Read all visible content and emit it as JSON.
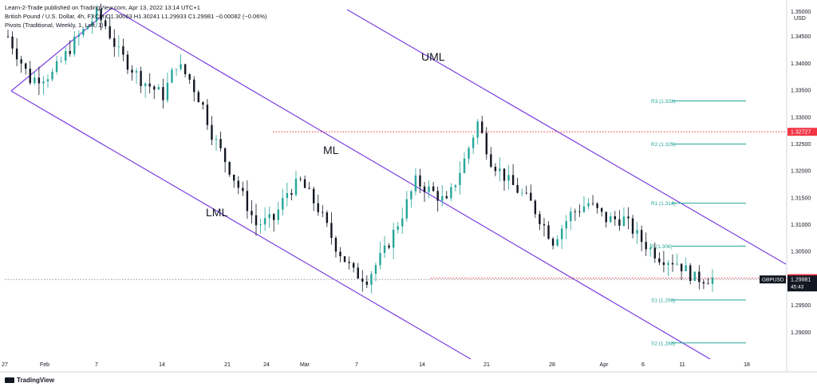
{
  "header": {
    "publisher": "Learn-2-Trade published on TradingView.com, Apr 13, 2022 13:14 UTC+1",
    "symbol_line": "British Pound / U.S. Dollar, 4h, FXCM  O1.30063 H1.30241 L1.29933 C1.29981 −0.00082 (−0.06%)",
    "indicator_line": "Pivots (Traditional, Weekly, 1, Left, 1)"
  },
  "footer": {
    "brand": "TradingView"
  },
  "colors": {
    "bull": "#26a69a",
    "bear": "#131722",
    "channel": "#7b3fe4",
    "pivot": "#26a69a",
    "dotted_red": "#f23645",
    "dotted_gray": "#9598a1"
  },
  "chart_data": {
    "type": "candlestick",
    "title": "British Pound / U.S. Dollar, 4h, FXCM",
    "currency": "USD",
    "ylim": [
      1.285,
      1.35
    ],
    "yticks": [
      1.29,
      1.295,
      1.3,
      1.305,
      1.31,
      1.315,
      1.32,
      1.325,
      1.33,
      1.335,
      1.34,
      1.345
    ],
    "y_tick_labels": [
      "1.29000",
      "1.29500",
      "1.30000",
      "1.30500",
      "1.31000",
      "1.31500",
      "1.32000",
      "1.32500",
      "1.33000",
      "1.33500",
      "1.34000",
      "1.34500"
    ],
    "top_tick_label": "1.35000",
    "x_tick_labels": [
      "27",
      "Feb",
      "7",
      "14",
      "21",
      "24",
      "Mar",
      "7",
      "14",
      "21",
      "28",
      "Apr",
      "6",
      "11",
      "18"
    ],
    "channel_labels": [
      "UML",
      "ML",
      "LML"
    ],
    "pivots": [
      {
        "label": "R3 (1.333)",
        "value": 1.333
      },
      {
        "label": "R2 (1.325)",
        "value": 1.325
      },
      {
        "label": "R1 (1.314)",
        "value": 1.314
      },
      {
        "label": "P (1.306)",
        "value": 1.306
      },
      {
        "label": "S1 (1.296)",
        "value": 1.296
      },
      {
        "label": "S2 (1.288)",
        "value": 1.288
      }
    ],
    "price_tags": [
      {
        "label": "1.32727",
        "value": 1.32727,
        "color": "#f23645"
      },
      {
        "label": "1.30005",
        "value": 1.30005,
        "color": "#f23645"
      }
    ],
    "last_price": {
      "symbol": "GBPUSD",
      "price": "1.29981",
      "countdown": "45:43"
    },
    "waypoints": [
      [
        0,
        1.345
      ],
      [
        5,
        1.337
      ],
      [
        10,
        1.338
      ],
      [
        15,
        1.344
      ],
      [
        20,
        1.349
      ],
      [
        22,
        1.347
      ],
      [
        25,
        1.342
      ],
      [
        30,
        1.337
      ],
      [
        35,
        1.334
      ],
      [
        38,
        1.34
      ],
      [
        41,
        1.337
      ],
      [
        44,
        1.332
      ],
      [
        46,
        1.327
      ],
      [
        49,
        1.322
      ],
      [
        52,
        1.317
      ],
      [
        56,
        1.31
      ],
      [
        60,
        1.311
      ],
      [
        63,
        1.316
      ],
      [
        66,
        1.318
      ],
      [
        70,
        1.313
      ],
      [
        74,
        1.306
      ],
      [
        78,
        1.301
      ],
      [
        81,
        1.3
      ],
      [
        85,
        1.305
      ],
      [
        89,
        1.312
      ],
      [
        92,
        1.318
      ],
      [
        96,
        1.316
      ],
      [
        99,
        1.314
      ],
      [
        103,
        1.322
      ],
      [
        106,
        1.329
      ],
      [
        109,
        1.322
      ],
      [
        113,
        1.318
      ],
      [
        118,
        1.314
      ],
      [
        123,
        1.307
      ],
      [
        127,
        1.312
      ],
      [
        131,
        1.314
      ],
      [
        135,
        1.311
      ],
      [
        139,
        1.311
      ],
      [
        143,
        1.307
      ],
      [
        147,
        1.304
      ],
      [
        151,
        1.303
      ],
      [
        155,
        1.3
      ],
      [
        159,
        1.3
      ]
    ]
  }
}
